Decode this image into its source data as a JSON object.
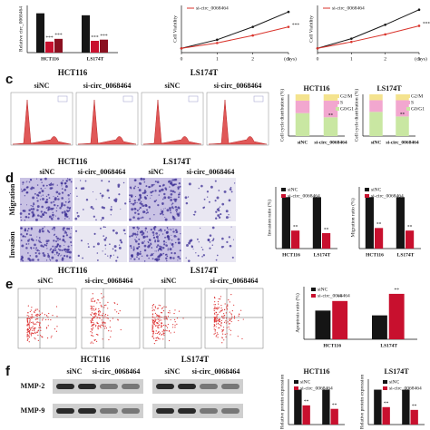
{
  "panel_a": {
    "ylabel": "Relative circ_0068464",
    "categories": [
      "HCT116",
      "LS174T"
    ],
    "ylim": [
      0,
      1.2
    ],
    "annotation": "***",
    "series": [
      {
        "color": "#151515",
        "values": [
          1.0,
          0.95
        ]
      },
      {
        "color": "#c8102e",
        "values": [
          0.28,
          0.3
        ]
      },
      {
        "color": "#8a1020",
        "values": [
          0.35,
          0.33
        ]
      }
    ]
  },
  "panel_b": {
    "charts": [
      {
        "ylabel": "Cell Viability",
        "legend": "si-circ_0068464",
        "xlabel": "(days)",
        "annotation": "***",
        "x": [
          0,
          1,
          2,
          3
        ],
        "ylim": [
          0,
          2.2
        ],
        "series": [
          {
            "color": "#151515",
            "values": [
              0.2,
              0.6,
              1.2,
              1.9
            ]
          },
          {
            "color": "#d9332b",
            "values": [
              0.2,
              0.45,
              0.8,
              1.2
            ]
          }
        ]
      },
      {
        "ylabel": "Cell Viability",
        "legend": "si-circ_0068464",
        "xlabel": "(days)",
        "annotation": "***",
        "x": [
          0,
          1,
          2,
          3
        ],
        "ylim": [
          0,
          2.2
        ],
        "series": [
          {
            "color": "#151515",
            "values": [
              0.2,
              0.65,
              1.3,
              2.0
            ]
          },
          {
            "color": "#d9332b",
            "values": [
              0.2,
              0.5,
              0.85,
              1.25
            ]
          }
        ]
      }
    ]
  },
  "panel_c": {
    "label": "c",
    "cell_lines": [
      "HCT116",
      "LS174T"
    ],
    "conditions": [
      "siNC",
      "si-circ_0068464",
      "siNC",
      "si-circ_0068464"
    ],
    "charts": [
      {
        "title": "HCT116",
        "ylabel": "Cell cycle distribution (%)",
        "categories": [
          "siNC",
          "si-circ_0068464"
        ],
        "ylim": [
          0,
          100
        ],
        "annotation": "**",
        "series": [
          {
            "name": "G0/G1",
            "color": "#c9e7a2",
            "values": [
              55,
              45
            ]
          },
          {
            "name": "S",
            "color": "#f2a7cf",
            "values": [
              30,
              40
            ]
          },
          {
            "name": "G2/M",
            "color": "#f4e38e",
            "values": [
              15,
              15
            ]
          }
        ]
      },
      {
        "title": "LS174T",
        "ylabel": "Cell cycle distribution (%)",
        "categories": [
          "siNC",
          "si-circ_0068464"
        ],
        "ylim": [
          0,
          100
        ],
        "annotation": "**",
        "series": [
          {
            "name": "G0/G1",
            "color": "#c9e7a2",
            "values": [
              58,
              47
            ]
          },
          {
            "name": "S",
            "color": "#f2a7cf",
            "values": [
              28,
              39
            ]
          },
          {
            "name": "G2/M",
            "color": "#f4e38e",
            "values": [
              14,
              14
            ]
          }
        ]
      }
    ]
  },
  "panel_d": {
    "label": "d",
    "cell_lines": [
      "HCT116",
      "LS174T"
    ],
    "conditions": [
      "siNC",
      "si-circ_0068464",
      "siNC",
      "si-circ_0068464"
    ],
    "rows": [
      "Migration",
      "Invasion"
    ],
    "charts": [
      {
        "ylabel": "Invasion ratio (%)",
        "categories": [
          "HCT116",
          "LS174T"
        ],
        "ylim": [
          0,
          120
        ],
        "annotation": "**",
        "series": [
          {
            "name": "siNC",
            "color": "#151515",
            "values": [
              100,
              100
            ]
          },
          {
            "name": "si-circ_0068464",
            "color": "#c8102e",
            "values": [
              35,
              30
            ]
          }
        ]
      },
      {
        "ylabel": "Migration ratio (%)",
        "categories": [
          "HCT116",
          "LS174T"
        ],
        "ylim": [
          0,
          120
        ],
        "annotation": "**",
        "series": [
          {
            "name": "siNC",
            "color": "#151515",
            "values": [
              100,
              100
            ]
          },
          {
            "name": "si-circ_0068464",
            "color": "#c8102e",
            "values": [
              40,
              35
            ]
          }
        ]
      }
    ]
  },
  "panel_e": {
    "label": "e",
    "cell_lines": [
      "HCT116",
      "LS174T"
    ],
    "conditions": [
      "siNC",
      "si-circ_0068464",
      "siNC",
      "si-circ_0068464"
    ],
    "chart": {
      "ylabel": "Apoptosis ratio (%)",
      "categories": [
        "HCT116",
        "LS174T"
      ],
      "ylim": [
        0,
        22
      ],
      "annotation": "**",
      "series": [
        {
          "name": "siNC",
          "color": "#151515",
          "values": [
            12,
            10
          ]
        },
        {
          "name": "si-circ_0068464",
          "color": "#c8102e",
          "values": [
            16,
            19
          ]
        }
      ]
    }
  },
  "panel_f": {
    "label": "f",
    "cell_lines": [
      "HCT116",
      "LS174T"
    ],
    "conditions": [
      "siNC",
      "si-circ_0068464",
      "siNC",
      "si-circ_0068464"
    ],
    "rows": [
      "MMP-2",
      "MMP-9"
    ],
    "charts": [
      {
        "title": "HCT116",
        "ylabel": "Relative protein expression",
        "ylim": [
          0,
          1.3
        ],
        "annotation": "**",
        "series": [
          {
            "name": "siNC",
            "color": "#151515",
            "values": [
              1.0,
              1.0
            ]
          },
          {
            "name": "si-circ_0068464",
            "color": "#c8102e",
            "values": [
              0.55,
              0.45
            ]
          }
        ]
      },
      {
        "title": "LS174T",
        "ylabel": "Relative protein expression",
        "ylim": [
          0,
          1.3
        ],
        "annotation": "**",
        "series": [
          {
            "name": "siNC",
            "color": "#151515",
            "values": [
              1.0,
              1.0
            ]
          },
          {
            "name": "si-circ_0068464",
            "color": "#c8102e",
            "values": [
              0.5,
              0.42
            ]
          }
        ]
      }
    ]
  }
}
